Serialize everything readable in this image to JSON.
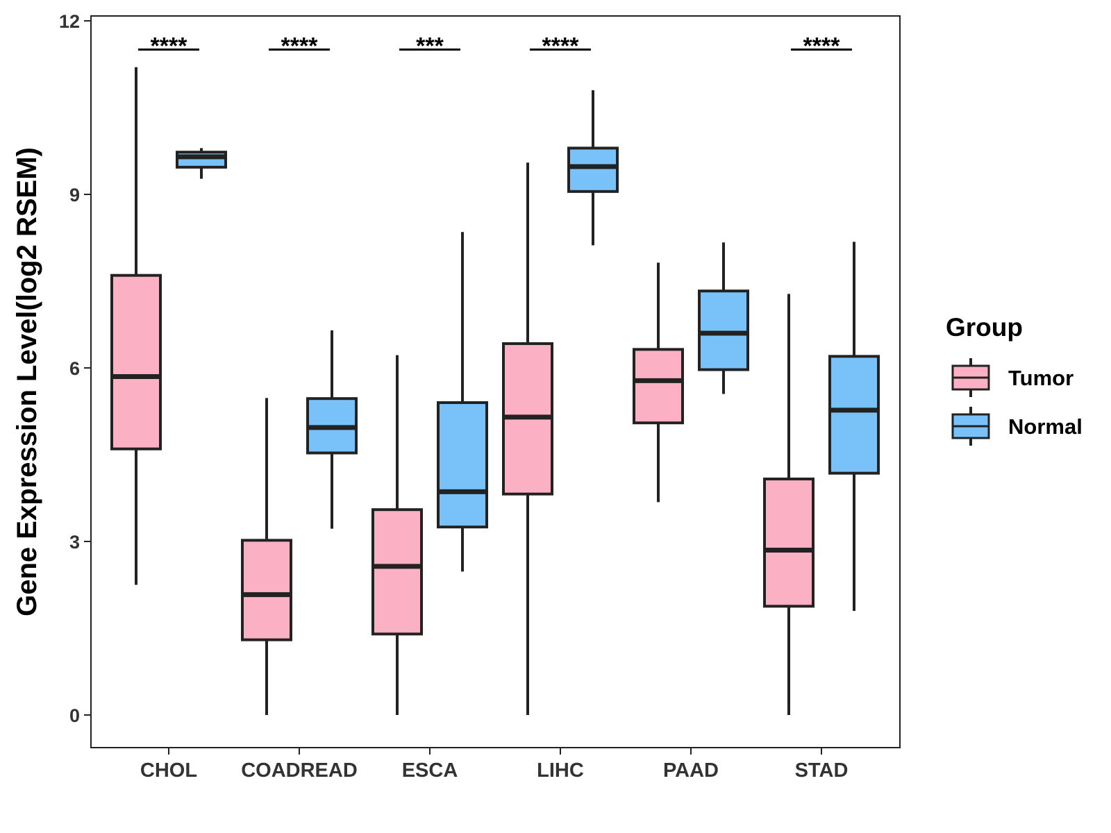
{
  "chart_data": {
    "type": "boxplot",
    "title": "",
    "xlabel": "",
    "ylabel": "Gene Expression Level(log2 RSEM)",
    "ylim": [
      -0.55,
      12.15
    ],
    "yticks": [
      0,
      3,
      6,
      9,
      12
    ],
    "categories": [
      "CHOL",
      "COADREAD",
      "ESCA",
      "LIHC",
      "PAAD",
      "STAD"
    ],
    "legend": {
      "title": "Group",
      "position": "right",
      "entries": [
        "Tumor",
        "Normal"
      ]
    },
    "series": [
      {
        "name": "Tumor",
        "color": "#FBB0C3",
        "boxes": [
          {
            "min": 2.25,
            "q1": 4.6,
            "median": 5.85,
            "q3": 7.6,
            "max": 11.2
          },
          {
            "min": 0.0,
            "q1": 1.3,
            "median": 2.08,
            "q3": 3.02,
            "max": 5.48
          },
          {
            "min": 0.0,
            "q1": 1.4,
            "median": 2.57,
            "q3": 3.55,
            "max": 6.22
          },
          {
            "min": 0.0,
            "q1": 3.82,
            "median": 5.15,
            "q3": 6.42,
            "max": 9.55
          },
          {
            "min": 3.68,
            "q1": 5.05,
            "median": 5.78,
            "q3": 6.32,
            "max": 7.82
          },
          {
            "min": 0.0,
            "q1": 1.88,
            "median": 2.85,
            "q3": 4.08,
            "max": 7.28
          }
        ]
      },
      {
        "name": "Normal",
        "color": "#79C2F9",
        "boxes": [
          {
            "min": 9.27,
            "q1": 9.47,
            "median": 9.65,
            "q3": 9.73,
            "max": 9.8
          },
          {
            "min": 3.22,
            "q1": 4.53,
            "median": 4.97,
            "q3": 5.47,
            "max": 6.65
          },
          {
            "min": 2.48,
            "q1": 3.25,
            "median": 3.86,
            "q3": 5.4,
            "max": 8.35
          },
          {
            "min": 8.12,
            "q1": 9.05,
            "median": 9.48,
            "q3": 9.8,
            "max": 10.8
          },
          {
            "min": 5.55,
            "q1": 5.97,
            "median": 6.6,
            "q3": 7.33,
            "max": 8.17
          },
          {
            "min": 1.8,
            "q1": 4.18,
            "median": 5.27,
            "q3": 6.2,
            "max": 8.18
          }
        ]
      }
    ],
    "significance": [
      {
        "category": "CHOL",
        "label": "****"
      },
      {
        "category": "COADREAD",
        "label": "****"
      },
      {
        "category": "ESCA",
        "label": "***"
      },
      {
        "category": "LIHC",
        "label": "****"
      },
      {
        "category": "STAD",
        "label": "****"
      }
    ],
    "significance_level": 11.6
  }
}
